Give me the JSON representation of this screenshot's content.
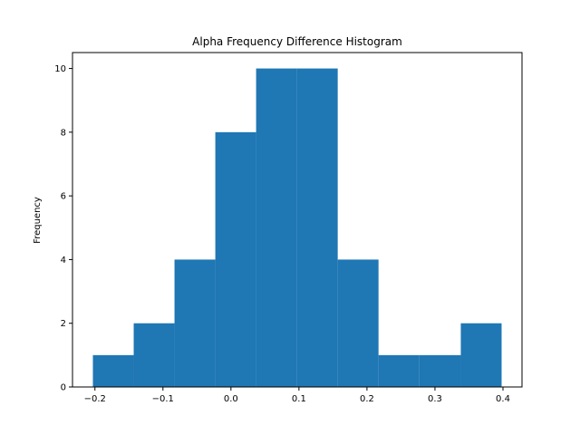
{
  "chart_data": {
    "type": "bar",
    "title": "Alpha Frequency Difference Histogram",
    "xlabel": "",
    "ylabel": "Frequency",
    "bin_edges": [
      -0.203,
      -0.143,
      -0.083,
      -0.023,
      0.037,
      0.097,
      0.157,
      0.217,
      0.277,
      0.338,
      0.398
    ],
    "values": [
      1,
      2,
      4,
      8,
      10,
      10,
      4,
      1,
      1,
      2
    ],
    "xlim": [
      -0.233,
      0.428
    ],
    "ylim": [
      0,
      10.5
    ],
    "xticks": [
      -0.2,
      -0.1,
      0.0,
      0.1,
      0.2,
      0.3,
      0.4
    ],
    "xtick_labels": [
      "−0.2",
      "−0.1",
      "0.0",
      "0.1",
      "0.2",
      "0.3",
      "0.4"
    ],
    "yticks": [
      0,
      2,
      4,
      6,
      8,
      10
    ],
    "ytick_labels": [
      "0",
      "2",
      "4",
      "6",
      "8",
      "10"
    ],
    "bar_color": "#1f77b4",
    "grid": false,
    "legend": "none"
  }
}
